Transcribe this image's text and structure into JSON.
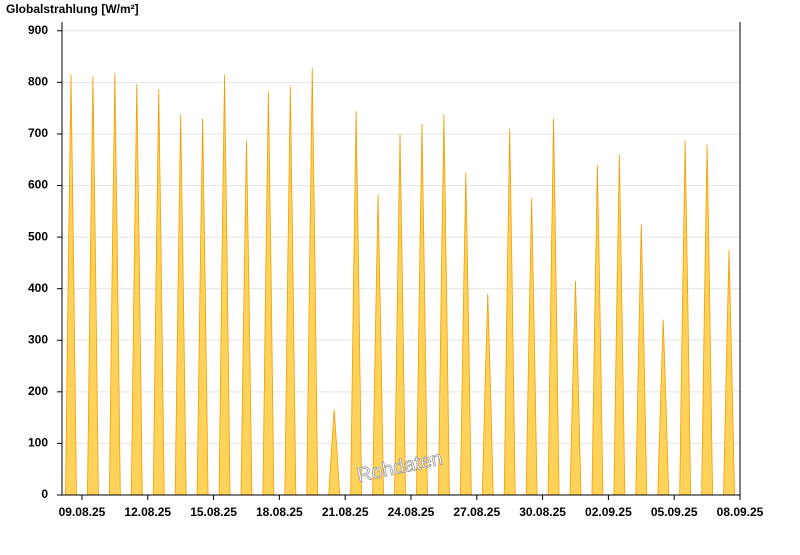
{
  "chart_data": {
    "type": "area",
    "title": "Globalstrahlung [W/m²]",
    "annotation": "Rohdaten",
    "color": "#ffd35a",
    "line_color": "#f39c00",
    "grid": true,
    "xlim": [
      -0.91,
      30
    ],
    "ylim": [
      0,
      917
    ],
    "xticks": [
      {
        "value": 0,
        "label": "09.08.25"
      },
      {
        "value": 3,
        "label": "12.08.25"
      },
      {
        "value": 6,
        "label": "15.08.25"
      },
      {
        "value": 9,
        "label": "18.08.25"
      },
      {
        "value": 12,
        "label": "21.08.25"
      },
      {
        "value": 15,
        "label": "24.08.25"
      },
      {
        "value": 18,
        "label": "27.08.25"
      },
      {
        "value": 21,
        "label": "30.08.25"
      },
      {
        "value": 24,
        "label": "02.09.25"
      },
      {
        "value": 27,
        "label": "05.09.25"
      },
      {
        "value": 30,
        "label": "08.09.25"
      }
    ],
    "yticks": [
      0,
      100,
      200,
      300,
      400,
      500,
      600,
      700,
      800,
      900
    ],
    "x": [
      -0.75,
      -0.62,
      -0.5,
      -0.38,
      -0.25,
      0.25,
      0.38,
      0.5,
      0.62,
      0.75,
      1.25,
      1.38,
      1.5,
      1.62,
      1.75,
      2.25,
      2.38,
      2.5,
      2.62,
      2.75,
      3.25,
      3.38,
      3.5,
      3.62,
      3.75,
      4.25,
      4.38,
      4.5,
      4.62,
      4.75,
      5.25,
      5.38,
      5.5,
      5.62,
      5.75,
      6.25,
      6.38,
      6.5,
      6.62,
      6.75,
      7.25,
      7.38,
      7.5,
      7.62,
      7.75,
      8.25,
      8.38,
      8.5,
      8.62,
      8.75,
      9.25,
      9.38,
      9.5,
      9.62,
      9.75,
      10.25,
      10.38,
      10.5,
      10.62,
      10.75,
      11.25,
      11.38,
      11.5,
      11.62,
      11.75,
      12.25,
      12.38,
      12.5,
      12.62,
      12.75,
      13.25,
      13.38,
      13.5,
      13.62,
      13.75,
      14.25,
      14.38,
      14.5,
      14.62,
      14.75,
      15.25,
      15.38,
      15.5,
      15.62,
      15.75,
      16.25,
      16.38,
      16.5,
      16.62,
      16.75,
      17.25,
      17.38,
      17.5,
      17.62,
      17.75,
      18.25,
      18.38,
      18.5,
      18.62,
      18.75,
      19.25,
      19.38,
      19.5,
      19.62,
      19.75,
      20.25,
      20.38,
      20.5,
      20.62,
      20.75,
      21.25,
      21.38,
      21.5,
      21.62,
      21.75,
      22.25,
      22.38,
      22.5,
      22.62,
      22.75,
      23.25,
      23.38,
      23.5,
      23.62,
      23.75,
      24.25,
      24.38,
      24.5,
      24.62,
      24.75,
      25.25,
      25.38,
      25.5,
      25.62,
      25.75,
      26.25,
      26.38,
      26.5,
      26.62,
      26.75,
      27.25,
      27.38,
      27.5,
      27.62,
      27.75,
      28.25,
      28.38,
      28.5,
      28.62,
      28.75,
      29.25,
      29.38,
      29.5,
      29.62,
      29.75
    ],
    "values": [
      0,
      448,
      815,
      448,
      0,
      0,
      447,
      812,
      447,
      0,
      0,
      450,
      818,
      450,
      0,
      0,
      438,
      797,
      438,
      0,
      0,
      433,
      787,
      433,
      0,
      0,
      406,
      738,
      406,
      0,
      0,
      402,
      730,
      402,
      0,
      0,
      448,
      815,
      448,
      0,
      0,
      378,
      688,
      378,
      0,
      0,
      431,
      783,
      431,
      0,
      0,
      436,
      792,
      436,
      0,
      0,
      455,
      828,
      455,
      0,
      0,
      91,
      165,
      91,
      0,
      0,
      410,
      745,
      410,
      0,
      0,
      320,
      582,
      320,
      0,
      0,
      385,
      700,
      385,
      0,
      0,
      396,
      720,
      396,
      0,
      0,
      406,
      738,
      406,
      0,
      0,
      344,
      625,
      344,
      0,
      0,
      215,
      390,
      215,
      0,
      0,
      391,
      710,
      391,
      0,
      0,
      316,
      575,
      316,
      0,
      0,
      402,
      730,
      402,
      0,
      0,
      228,
      415,
      228,
      0,
      0,
      352,
      640,
      352,
      0,
      0,
      363,
      660,
      363,
      0,
      0,
      289,
      525,
      289,
      0,
      0,
      187,
      340,
      187,
      0,
      0,
      378,
      688,
      378,
      0,
      0,
      374,
      680,
      374,
      0,
      0,
      261,
      475,
      261,
      0
    ]
  }
}
